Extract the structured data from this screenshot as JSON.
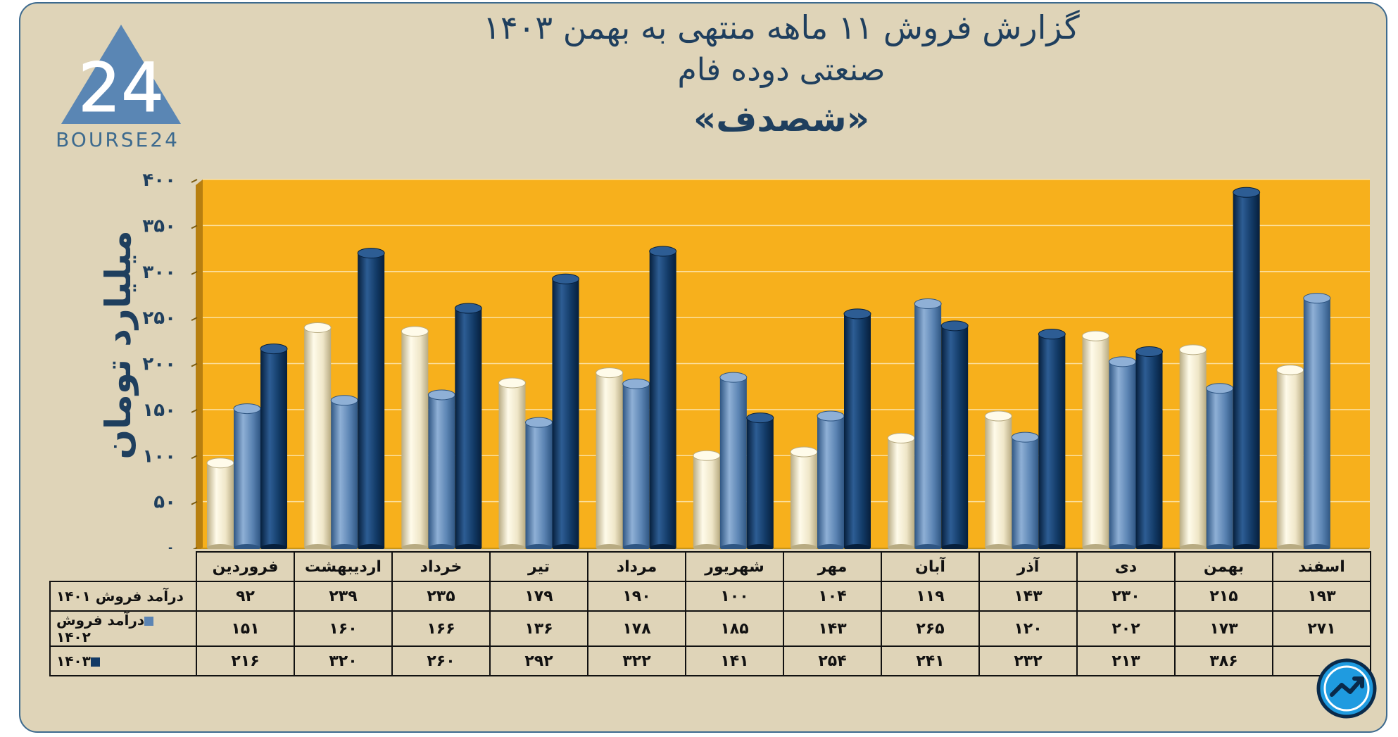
{
  "title": {
    "line1": "گزارش  فروش ۱۱ ماهه منتهی به بهمن ۱۴۰۳",
    "line2": "صنعتی دوده فام",
    "line3": "«شصدف»"
  },
  "logo": {
    "text": "BOURSE24",
    "mark": "24",
    "icon": "triangle-24-logo-icon"
  },
  "badge": {
    "icon": "trend-arrow-icon"
  },
  "colors": {
    "background": "#dfd4b8",
    "plot": "#f7b01c",
    "s1401": "#efe6c8",
    "s1402": "#5b84b3",
    "s1403": "#123a66",
    "title": "#1f3f5e"
  },
  "chart_data": {
    "type": "bar",
    "ylabel": "میلیارد تومان",
    "ylim": [
      0,
      400
    ],
    "yticks": [
      "۰",
      "۵۰",
      "۱۰۰",
      "۱۵۰",
      "۲۰۰",
      "۲۵۰",
      "۳۰۰",
      "۳۵۰",
      "۴۰۰"
    ],
    "grid": true,
    "categories": [
      "فروردین",
      "اردیبهشت",
      "خرداد",
      "تیر",
      "مرداد",
      "شهریور",
      "مهر",
      "آبان",
      "آذر",
      "دی",
      "بهمن",
      "اسفند"
    ],
    "series": [
      {
        "name": "درآمد فروش ۱۴۰۱",
        "values": [
          92,
          239,
          235,
          179,
          190,
          100,
          104,
          119,
          143,
          230,
          215,
          193
        ],
        "labels": [
          "۹۲",
          "۲۳۹",
          "۲۳۵",
          "۱۷۹",
          "۱۹۰",
          "۱۰۰",
          "۱۰۴",
          "۱۱۹",
          "۱۴۳",
          "۲۳۰",
          "۲۱۵",
          "۱۹۳"
        ]
      },
      {
        "name": "درآمد فروش ۱۴۰۲",
        "values": [
          151,
          160,
          166,
          136,
          178,
          185,
          143,
          265,
          120,
          202,
          173,
          271
        ],
        "labels": [
          "۱۵۱",
          "۱۶۰",
          "۱۶۶",
          "۱۳۶",
          "۱۷۸",
          "۱۸۵",
          "۱۴۳",
          "۲۶۵",
          "۱۲۰",
          "۲۰۲",
          "۱۷۳",
          "۲۷۱"
        ]
      },
      {
        "name": "۱۴۰۳",
        "values": [
          216,
          320,
          260,
          292,
          322,
          141,
          254,
          241,
          232,
          213,
          386,
          null
        ],
        "labels": [
          "۲۱۶",
          "۳۲۰",
          "۲۶۰",
          "۲۹۲",
          "۳۲۲",
          "۱۴۱",
          "۲۵۴",
          "۲۴۱",
          "۲۳۲",
          "۲۱۳",
          "۳۸۶",
          ""
        ]
      }
    ]
  }
}
